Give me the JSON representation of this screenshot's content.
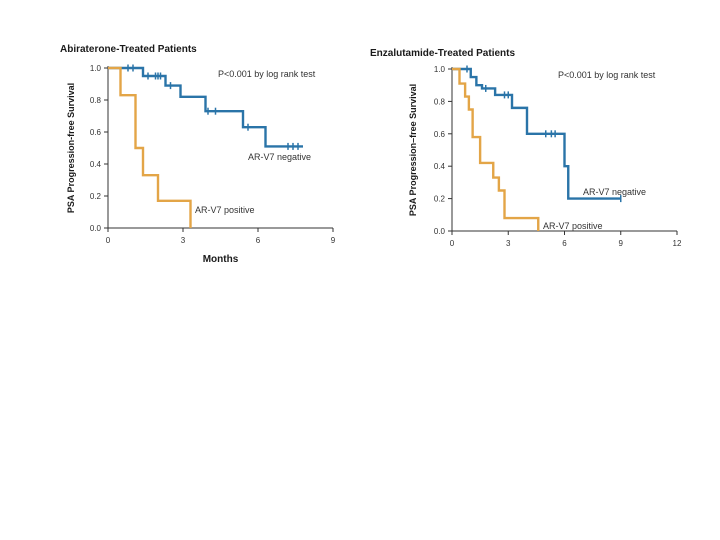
{
  "chart_data": [
    {
      "type": "line",
      "subtype": "kaplan-meier",
      "title": "Abiraterone-Treated Patients",
      "xlabel": "Months",
      "ylabel": "PSA Progression-free Survival",
      "xlim": [
        0,
        9
      ],
      "ylim": [
        0,
        1.0
      ],
      "xticks": [
        0,
        3,
        6,
        9
      ],
      "xtick_labels": [
        "0",
        "3",
        "6",
        "9"
      ],
      "yticks": [
        0,
        0.2,
        0.4,
        0.6,
        0.8,
        1.0
      ],
      "ytick_labels": [
        "0.0",
        "0.2",
        "0.4",
        "0.6",
        "0.8",
        "1.0"
      ],
      "pvalue_text": "P<0.001 by log rank test",
      "series": [
        {
          "name": "AR-V7 negative",
          "color": "#2a74a8",
          "x": [
            0,
            1.4,
            2.3,
            2.9,
            3.9,
            5.4,
            6.3,
            7.8
          ],
          "y": [
            1.0,
            0.95,
            0.89,
            0.82,
            0.73,
            0.63,
            0.51,
            0.51
          ],
          "censors_x": [
            0.8,
            1.0,
            1.6,
            1.9,
            2.0,
            2.1,
            2.5,
            4.0,
            4.3,
            5.6,
            7.2,
            7.4,
            7.6
          ],
          "label_text": "AR-V7 negative"
        },
        {
          "name": "AR-V7 positive",
          "color": "#e3a547",
          "x": [
            0,
            0.5,
            1.1,
            1.4,
            2.0,
            3.3,
            3.3
          ],
          "y": [
            1.0,
            0.83,
            0.5,
            0.33,
            0.17,
            0.17,
            0.0
          ],
          "censors_x": [],
          "label_text": "AR-V7 positive"
        }
      ]
    },
    {
      "type": "line",
      "subtype": "kaplan-meier",
      "title": "Enzalutamide-Treated Patients",
      "xlabel": "",
      "ylabel": "PSA Progression–free Survival",
      "xlim": [
        0,
        12
      ],
      "ylim": [
        0,
        1.0
      ],
      "xticks": [
        0,
        3,
        6,
        9,
        12
      ],
      "xtick_labels": [
        "0",
        "3",
        "6",
        "9",
        "12"
      ],
      "yticks": [
        0,
        0.2,
        0.4,
        0.6,
        0.8,
        1.0
      ],
      "ytick_labels": [
        "0.0",
        "0.2",
        "0.4",
        "0.6",
        "0.8",
        "1.0"
      ],
      "pvalue_text": "P<0.001 by log rank test",
      "series": [
        {
          "name": "AR-V7 negative",
          "color": "#2a74a8",
          "x": [
            0,
            1.0,
            1.3,
            1.6,
            2.3,
            3.2,
            4.0,
            6.0,
            6.0,
            6.2,
            9.0
          ],
          "y": [
            1.0,
            0.95,
            0.9,
            0.88,
            0.84,
            0.76,
            0.6,
            0.6,
            0.4,
            0.2,
            0.2
          ],
          "censors_x": [
            0.8,
            1.8,
            2.8,
            3.0,
            5.0,
            5.3,
            5.5,
            9.0
          ],
          "label_text": "AR-V7 negative"
        },
        {
          "name": "AR-V7 positive",
          "color": "#e3a547",
          "x": [
            0,
            0.4,
            0.7,
            0.9,
            1.1,
            1.5,
            2.2,
            2.5,
            2.8,
            4.6,
            4.6
          ],
          "y": [
            1.0,
            0.91,
            0.83,
            0.75,
            0.58,
            0.42,
            0.33,
            0.25,
            0.08,
            0.08,
            0.0
          ],
          "censors_x": [],
          "label_text": "AR-V7 positive"
        }
      ]
    }
  ]
}
